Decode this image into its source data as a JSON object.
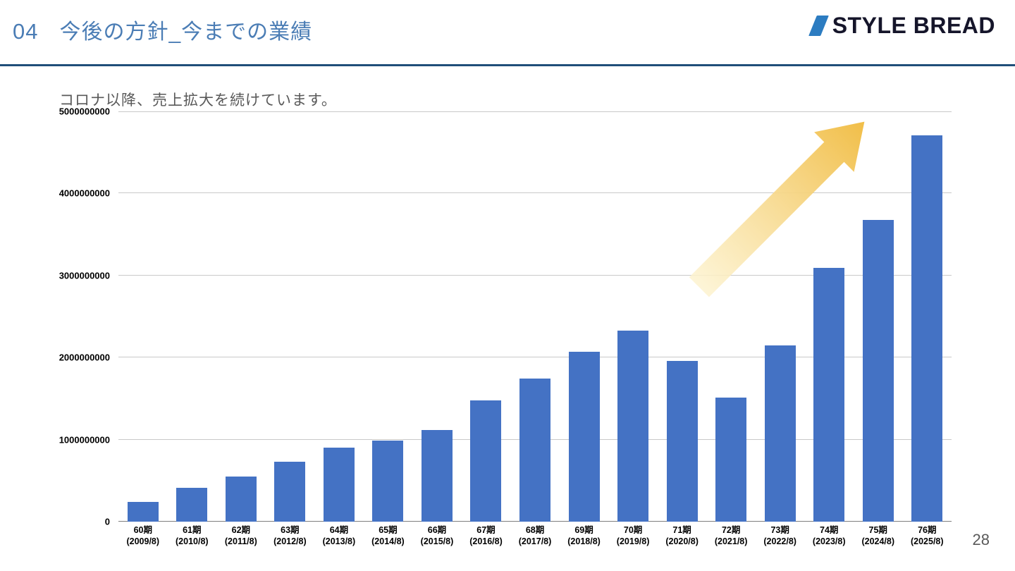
{
  "header": {
    "number": "04",
    "title": "今後の方針_今までの業績"
  },
  "logo": {
    "text": "STYLE BREAD"
  },
  "subtitle": "コロナ以降、売上拡大を続けています。",
  "page_number": "28",
  "colors": {
    "accent_line": "#1F4E79",
    "bar": "#4472C4",
    "header_text": "#4B7DB5",
    "arrow_start": "#FDF3D0",
    "arrow_end": "#F1BE48"
  },
  "chart_data": {
    "type": "bar",
    "title": "コロナ以降、売上拡大を続けています。",
    "categories": [
      "60期",
      "61期",
      "62期",
      "63期",
      "64期",
      "65期",
      "66期",
      "67期",
      "68期",
      "69期",
      "70期",
      "71期",
      "72期",
      "73期",
      "74期",
      "75期",
      "76期"
    ],
    "category_sublabels": [
      "(2009/8)",
      "(2010/8)",
      "(2011/8)",
      "(2012/8)",
      "(2013/8)",
      "(2014/8)",
      "(2015/8)",
      "(2016/8)",
      "(2017/8)",
      "(2018/8)",
      "(2019/8)",
      "(2020/8)",
      "(2021/8)",
      "(2022/8)",
      "(2023/8)",
      "(2024/8)",
      "(2025/8)"
    ],
    "values": [
      240000000,
      410000000,
      550000000,
      730000000,
      900000000,
      990000000,
      1120000000,
      1480000000,
      1740000000,
      2070000000,
      2330000000,
      1960000000,
      1510000000,
      2150000000,
      3090000000,
      3680000000,
      4710000000
    ],
    "xlabel": "",
    "ylabel": "",
    "ylim": [
      0,
      5000000000
    ],
    "ytick_labels": [
      "0",
      "1000000000",
      "2000000000",
      "3000000000",
      "4000000000",
      "5000000000"
    ],
    "grid": true,
    "legend": false,
    "annotation": "growth-arrow"
  }
}
